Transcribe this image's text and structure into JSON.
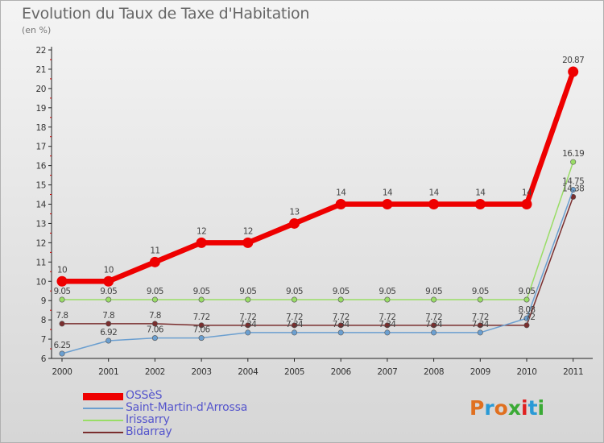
{
  "title": "Evolution du Taux de Taxe d'Habitation",
  "unit_label": "(en %)",
  "logo_text": "Proxiti",
  "colors": {
    "logo": [
      "#e07020",
      "#2a9ad6",
      "#e07020",
      "#3aaa35",
      "#e02020",
      "#2a9ad6",
      "#3aaa35"
    ]
  },
  "chart_data": {
    "type": "line",
    "x": [
      "2000",
      "2001",
      "2002",
      "2003",
      "2004",
      "2005",
      "2006",
      "2007",
      "2008",
      "2009",
      "2010",
      "2011"
    ],
    "ylim": [
      6,
      22
    ],
    "yticks": [
      6,
      7,
      8,
      9,
      10,
      11,
      12,
      13,
      14,
      15,
      16,
      17,
      18,
      19,
      20,
      21,
      22
    ],
    "grid": false,
    "legend_position": "bottom-left",
    "series": [
      {
        "name": "OSSèS",
        "color": "#ee0000",
        "values": [
          10,
          10,
          11,
          12,
          12,
          13,
          14,
          14,
          14,
          14,
          14,
          20.87
        ],
        "labels": [
          "10",
          "10",
          "11",
          "12",
          "12",
          "13",
          "14",
          "14",
          "14",
          "14",
          "14",
          "20.87"
        ]
      },
      {
        "name": "Saint-Martin-d'Arrossa",
        "color": "#6b9fd0",
        "values": [
          6.25,
          6.92,
          7.06,
          7.06,
          7.34,
          7.34,
          7.34,
          7.34,
          7.34,
          7.34,
          8.08,
          14.75
        ],
        "labels": [
          "6.25",
          "6.92",
          "7.06",
          "7.06",
          "7.34",
          "7.34",
          "7.34",
          "7.34",
          "7.34",
          "7.34",
          "8.08",
          "14.75"
        ]
      },
      {
        "name": "Irissarry",
        "color": "#99dd66",
        "values": [
          9.05,
          9.05,
          9.05,
          9.05,
          9.05,
          9.05,
          9.05,
          9.05,
          9.05,
          9.05,
          9.05,
          16.19
        ],
        "labels": [
          "9.05",
          "9.05",
          "9.05",
          "9.05",
          "9.05",
          "9.05",
          "9.05",
          "9.05",
          "9.05",
          "9.05",
          "9.05",
          "16.19"
        ]
      },
      {
        "name": "Bidarray",
        "color": "#7a2e2e",
        "values": [
          7.8,
          7.8,
          7.8,
          7.72,
          7.72,
          7.72,
          7.72,
          7.72,
          7.72,
          7.72,
          7.72,
          14.38
        ],
        "labels": [
          "7.8",
          "7.8",
          "7.8",
          "7.72",
          "7.72",
          "7.72",
          "7.72",
          "7.72",
          "7.72",
          "7.72",
          "7.72",
          "14.38"
        ]
      }
    ]
  }
}
